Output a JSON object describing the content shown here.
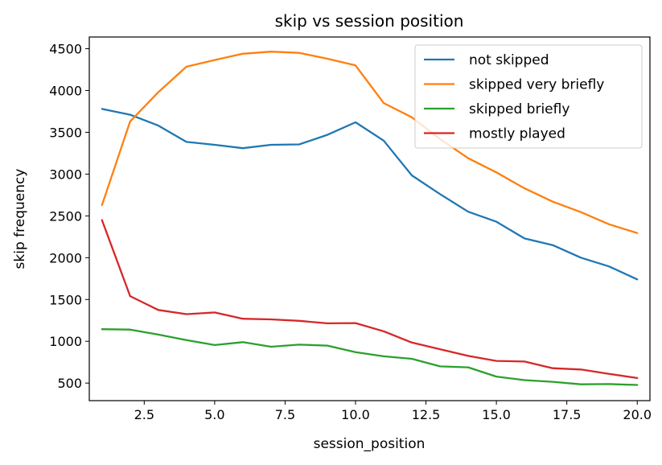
{
  "chart_data": {
    "type": "line",
    "title": "skip vs session position",
    "xlabel": "session_position",
    "ylabel": "skip frequency",
    "xlim": [
      0.55,
      20.45
    ],
    "ylim": [
      290,
      4640
    ],
    "x_ticks": [
      2.5,
      5.0,
      7.5,
      10.0,
      12.5,
      15.0,
      17.5,
      20.0
    ],
    "x_tick_labels": [
      "2.5",
      "5.0",
      "7.5",
      "10.0",
      "12.5",
      "15.0",
      "17.5",
      "20.0"
    ],
    "y_ticks": [
      500,
      1000,
      1500,
      2000,
      2500,
      3000,
      3500,
      4000,
      4500
    ],
    "y_tick_labels": [
      "500",
      "1000",
      "1500",
      "2000",
      "2500",
      "3000",
      "3500",
      "4000",
      "4500"
    ],
    "grid": false,
    "legend_position": "top-right",
    "x": [
      1,
      2,
      3,
      4,
      5,
      6,
      7,
      8,
      9,
      10,
      11,
      12,
      13,
      14,
      15,
      16,
      17,
      18,
      19,
      20
    ],
    "series": [
      {
        "name": "not skipped",
        "color": "#1f77b4",
        "values": [
          3780,
          3710,
          3580,
          3385,
          3350,
          3310,
          3350,
          3355,
          3470,
          3620,
          3400,
          2985,
          2760,
          2550,
          2430,
          2230,
          2150,
          2000,
          1895,
          1740
        ]
      },
      {
        "name": "skipped very briefly",
        "color": "#ff7f0e",
        "values": [
          2630,
          3630,
          3980,
          4285,
          4365,
          4440,
          4465,
          4450,
          4380,
          4300,
          3850,
          3680,
          3420,
          3190,
          3020,
          2830,
          2670,
          2545,
          2400,
          2295
        ]
      },
      {
        "name": "skipped briefly",
        "color": "#2ca02c",
        "values": [
          1145,
          1140,
          1080,
          1015,
          955,
          990,
          935,
          960,
          948,
          870,
          820,
          790,
          700,
          688,
          578,
          535,
          515,
          485,
          488,
          478
        ]
      },
      {
        "name": "mostly played",
        "color": "#d62728",
        "values": [
          2450,
          1540,
          1375,
          1325,
          1345,
          1270,
          1262,
          1245,
          1215,
          1218,
          1120,
          985,
          905,
          825,
          765,
          758,
          678,
          662,
          610,
          560
        ]
      }
    ]
  }
}
